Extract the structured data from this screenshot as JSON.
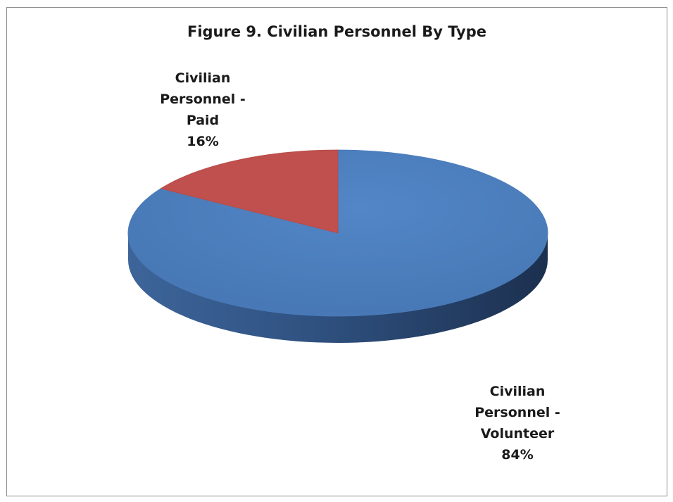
{
  "chart_data": {
    "type": "pie",
    "title": "Figure 9. Civilian Personnel By Type",
    "slices": [
      {
        "label_lines": [
          "Civilian",
          "Personnel -",
          "Volunteer"
        ],
        "value": 84,
        "value_label": "84%",
        "color": "#4f81bd"
      },
      {
        "label_lines": [
          "Civilian",
          "Personnel -",
          "Paid"
        ],
        "value": 16,
        "value_label": "16%",
        "color": "#c0504d"
      }
    ],
    "style": "3d"
  }
}
